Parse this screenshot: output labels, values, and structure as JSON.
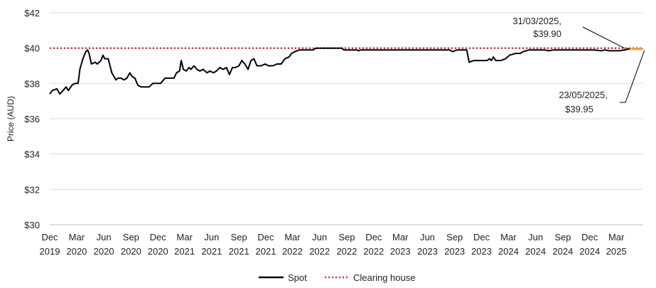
{
  "chart_data": {
    "type": "line",
    "ylabel": "Price (AUD)",
    "ylim": [
      30,
      42
    ],
    "yticks": [
      30,
      32,
      34,
      36,
      38,
      40,
      42
    ],
    "ytick_labels": [
      "$30",
      "$32",
      "$34",
      "$36",
      "$38",
      "$40",
      "$42"
    ],
    "x_range": [
      "2019-12-01",
      "2025-05-31"
    ],
    "x_ticks": [
      {
        "date": "2019-12-01",
        "month": "Dec",
        "year": "2019"
      },
      {
        "date": "2020-03-01",
        "month": "Mar",
        "year": "2020"
      },
      {
        "date": "2020-06-01",
        "month": "Jun",
        "year": "2020"
      },
      {
        "date": "2020-09-01",
        "month": "Sep",
        "year": "2020"
      },
      {
        "date": "2020-12-01",
        "month": "Dec",
        "year": "2020"
      },
      {
        "date": "2021-03-01",
        "month": "Mar",
        "year": "2021"
      },
      {
        "date": "2021-06-01",
        "month": "Jun",
        "year": "2021"
      },
      {
        "date": "2021-09-01",
        "month": "Sep",
        "year": "2021"
      },
      {
        "date": "2021-12-01",
        "month": "Dec",
        "year": "2021"
      },
      {
        "date": "2022-03-01",
        "month": "Mar",
        "year": "2022"
      },
      {
        "date": "2022-06-01",
        "month": "Jun",
        "year": "2022"
      },
      {
        "date": "2022-09-01",
        "month": "Sep",
        "year": "2022"
      },
      {
        "date": "2022-12-01",
        "month": "Dec",
        "year": "2022"
      },
      {
        "date": "2023-03-01",
        "month": "Mar",
        "year": "2023"
      },
      {
        "date": "2023-06-01",
        "month": "Jun",
        "year": "2023"
      },
      {
        "date": "2023-09-01",
        "month": "Sep",
        "year": "2023"
      },
      {
        "date": "2023-12-01",
        "month": "Dec",
        "year": "2023"
      },
      {
        "date": "2024-03-01",
        "month": "Mar",
        "year": "2024"
      },
      {
        "date": "2024-06-01",
        "month": "Jun",
        "year": "2024"
      },
      {
        "date": "2024-09-01",
        "month": "Sep",
        "year": "2024"
      },
      {
        "date": "2024-12-01",
        "month": "Dec",
        "year": "2024"
      },
      {
        "date": "2025-03-01",
        "month": "Mar",
        "year": "2025"
      }
    ],
    "grid": "horizontal",
    "legend_position": "bottom",
    "series": [
      {
        "name": "Spot",
        "color": "#000000",
        "style": "solid",
        "points": [
          [
            "2019-12-01",
            37.4
          ],
          [
            "2019-12-10",
            37.6
          ],
          [
            "2019-12-25",
            37.7
          ],
          [
            "2020-01-04",
            37.4
          ],
          [
            "2020-01-15",
            37.6
          ],
          [
            "2020-01-25",
            37.8
          ],
          [
            "2020-02-02",
            37.6
          ],
          [
            "2020-02-14",
            37.9
          ],
          [
            "2020-02-25",
            38.0
          ],
          [
            "2020-03-06",
            38.0
          ],
          [
            "2020-03-12",
            38.8
          ],
          [
            "2020-03-22",
            39.4
          ],
          [
            "2020-04-01",
            39.8
          ],
          [
            "2020-04-07",
            39.9
          ],
          [
            "2020-04-12",
            39.7
          ],
          [
            "2020-04-20",
            39.1
          ],
          [
            "2020-05-03",
            39.2
          ],
          [
            "2020-05-10",
            39.1
          ],
          [
            "2020-05-22",
            39.3
          ],
          [
            "2020-05-29",
            39.6
          ],
          [
            "2020-06-04",
            39.4
          ],
          [
            "2020-06-16",
            39.4
          ],
          [
            "2020-06-28",
            38.6
          ],
          [
            "2020-07-05",
            38.4
          ],
          [
            "2020-07-12",
            38.2
          ],
          [
            "2020-07-19",
            38.3
          ],
          [
            "2020-07-29",
            38.3
          ],
          [
            "2020-08-08",
            38.2
          ],
          [
            "2020-08-18",
            38.3
          ],
          [
            "2020-08-28",
            38.6
          ],
          [
            "2020-09-04",
            38.4
          ],
          [
            "2020-09-14",
            38.3
          ],
          [
            "2020-09-24",
            37.9
          ],
          [
            "2020-10-05",
            37.8
          ],
          [
            "2020-10-20",
            37.8
          ],
          [
            "2020-11-01",
            37.8
          ],
          [
            "2020-11-14",
            38.0
          ],
          [
            "2020-11-27",
            38.0
          ],
          [
            "2020-12-10",
            38.0
          ],
          [
            "2020-12-25",
            38.3
          ],
          [
            "2021-01-10",
            38.3
          ],
          [
            "2021-01-24",
            38.3
          ],
          [
            "2021-02-02",
            38.6
          ],
          [
            "2021-02-12",
            38.7
          ],
          [
            "2021-02-18",
            39.3
          ],
          [
            "2021-02-25",
            38.8
          ],
          [
            "2021-03-07",
            38.7
          ],
          [
            "2021-03-16",
            38.9
          ],
          [
            "2021-03-23",
            38.8
          ],
          [
            "2021-04-02",
            39.0
          ],
          [
            "2021-04-12",
            38.8
          ],
          [
            "2021-04-22",
            38.7
          ],
          [
            "2021-05-03",
            38.8
          ],
          [
            "2021-05-16",
            38.6
          ],
          [
            "2021-05-26",
            38.7
          ],
          [
            "2021-06-07",
            38.6
          ],
          [
            "2021-06-17",
            38.7
          ],
          [
            "2021-06-28",
            38.9
          ],
          [
            "2021-07-10",
            38.8
          ],
          [
            "2021-07-21",
            38.9
          ],
          [
            "2021-07-31",
            38.5
          ],
          [
            "2021-08-10",
            38.9
          ],
          [
            "2021-08-20",
            38.9
          ],
          [
            "2021-09-01",
            39.0
          ],
          [
            "2021-09-11",
            39.3
          ],
          [
            "2021-09-21",
            39.1
          ],
          [
            "2021-10-02",
            38.8
          ],
          [
            "2021-10-12",
            39.3
          ],
          [
            "2021-10-22",
            39.4
          ],
          [
            "2021-11-01",
            39.0
          ],
          [
            "2021-11-15",
            39.0
          ],
          [
            "2021-11-29",
            39.1
          ],
          [
            "2021-12-10",
            39.0
          ],
          [
            "2021-12-25",
            39.0
          ],
          [
            "2022-01-08",
            39.1
          ],
          [
            "2022-01-22",
            39.1
          ],
          [
            "2022-02-04",
            39.4
          ],
          [
            "2022-02-18",
            39.5
          ],
          [
            "2022-02-26",
            39.7
          ],
          [
            "2022-03-10",
            39.8
          ],
          [
            "2022-03-24",
            39.9
          ],
          [
            "2022-04-15",
            39.9
          ],
          [
            "2022-05-10",
            39.9
          ],
          [
            "2022-05-20",
            40.0
          ],
          [
            "2022-06-20",
            40.0
          ],
          [
            "2022-07-20",
            40.0
          ],
          [
            "2022-08-15",
            40.0
          ],
          [
            "2022-08-22",
            39.9
          ],
          [
            "2022-09-20",
            39.9
          ],
          [
            "2022-10-05",
            39.9
          ],
          [
            "2022-10-10",
            39.85
          ],
          [
            "2022-10-18",
            39.9
          ],
          [
            "2022-12-15",
            39.9
          ],
          [
            "2023-02-15",
            39.9
          ],
          [
            "2023-04-15",
            39.9
          ],
          [
            "2023-06-15",
            39.9
          ],
          [
            "2023-08-01",
            39.9
          ],
          [
            "2023-08-15",
            39.9
          ],
          [
            "2023-08-25",
            39.8
          ],
          [
            "2023-09-10",
            39.9
          ],
          [
            "2023-10-05",
            39.9
          ],
          [
            "2023-10-12",
            39.9
          ],
          [
            "2023-10-20",
            39.2
          ],
          [
            "2023-11-05",
            39.3
          ],
          [
            "2023-12-01",
            39.3
          ],
          [
            "2023-12-20",
            39.3
          ],
          [
            "2023-12-28",
            39.4
          ],
          [
            "2024-01-03",
            39.3
          ],
          [
            "2024-01-10",
            39.5
          ],
          [
            "2024-01-18",
            39.3
          ],
          [
            "2024-02-05",
            39.3
          ],
          [
            "2024-02-20",
            39.4
          ],
          [
            "2024-03-05",
            39.6
          ],
          [
            "2024-03-25",
            39.7
          ],
          [
            "2024-04-10",
            39.7
          ],
          [
            "2024-04-20",
            39.8
          ],
          [
            "2024-05-10",
            39.9
          ],
          [
            "2024-06-01",
            39.9
          ],
          [
            "2024-07-01",
            39.9
          ],
          [
            "2024-07-15",
            39.85
          ],
          [
            "2024-08-01",
            39.9
          ],
          [
            "2024-09-15",
            39.9
          ],
          [
            "2024-11-01",
            39.9
          ],
          [
            "2024-12-15",
            39.9
          ],
          [
            "2025-01-10",
            39.85
          ],
          [
            "2025-01-20",
            39.9
          ],
          [
            "2025-02-05",
            39.85
          ],
          [
            "2025-03-10",
            39.85
          ],
          [
            "2025-03-31",
            39.9
          ],
          [
            "2025-04-08",
            39.95
          ],
          [
            "2025-04-15",
            39.95
          ]
        ]
      },
      {
        "name": "Clearing house",
        "color": "#e03030",
        "style": "dotted",
        "points": [
          [
            "2019-12-01",
            40.0
          ],
          [
            "2025-05-31",
            40.0
          ]
        ]
      }
    ],
    "highlight": {
      "color": "#f0a040",
      "points": [
        [
          "2025-04-01",
          39.95
        ],
        [
          "2025-05-31",
          39.95
        ]
      ]
    },
    "annotations": [
      {
        "date_label": "31/03/2025,",
        "value_label": "$39.90",
        "target_date": "2025-03-31",
        "target_value": 39.9
      },
      {
        "date_label": "23/05/2025,",
        "value_label": "$39.95",
        "target_date": "2025-05-23",
        "target_value": 39.95
      }
    ]
  }
}
